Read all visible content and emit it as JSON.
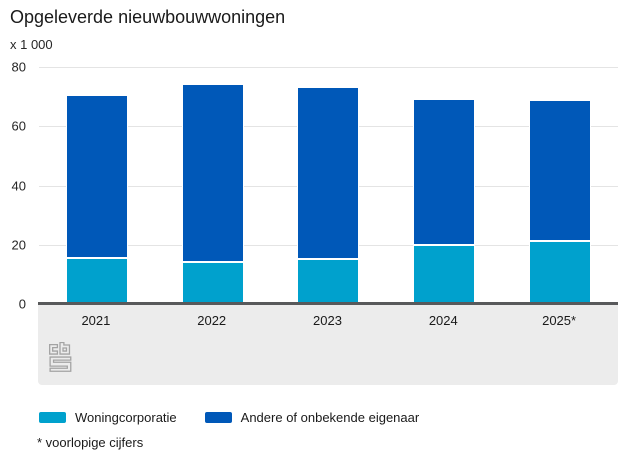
{
  "title": "Opgeleverde nieuwbouwwoningen",
  "unit_label": "x 1 000",
  "footnote": "* voorlopige cijfers",
  "branding": {
    "logo": "cbs-logo"
  },
  "colors": {
    "woningcorporatie": "#00a1cd",
    "andere_eigenaar": "#0058b8",
    "baseline": "#58595b",
    "grid": "#e4e4e4",
    "panel": "#ececec",
    "logo": "#a3a3a3"
  },
  "legend": [
    {
      "label": "Woningcorporatie",
      "color": "#00a1cd"
    },
    {
      "label": "Andere of onbekende eigenaar",
      "color": "#0058b8"
    }
  ],
  "chart_data": {
    "type": "bar",
    "stacked": true,
    "title": "Opgeleverde nieuwbouwwoningen",
    "ylabel": "x 1 000",
    "categories": [
      "2021",
      "2022",
      "2023",
      "2024",
      "2025*"
    ],
    "series": [
      {
        "name": "Woningcorporatie",
        "color": "#00a1cd",
        "values": [
          15.2,
          13.9,
          14.9,
          19.6,
          21.1
        ]
      },
      {
        "name": "Andere of onbekende eigenaar",
        "color": "#0058b8",
        "values": [
          55.5,
          60.4,
          58.4,
          49.5,
          47.8
        ]
      }
    ],
    "totals": [
      70.7,
      74.3,
      73.3,
      69.1,
      68.9
    ],
    "ylim": [
      0,
      80
    ],
    "yticks": [
      0,
      20,
      40,
      60,
      80
    ],
    "grid": true,
    "legend_position": "bottom"
  }
}
